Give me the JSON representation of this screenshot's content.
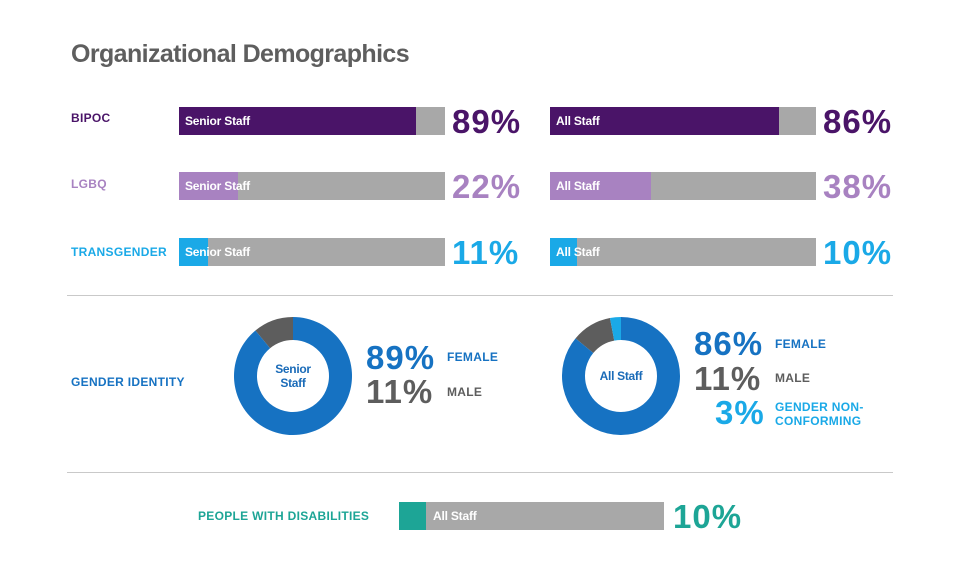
{
  "title": "Organizational Demographics",
  "colors": {
    "bipoc": "#4a1468",
    "lgbq": "#a882c1",
    "transgender": "#1aa9e7",
    "female": "#1672c2",
    "male": "#5d5d5d",
    "gnc": "#1aa9e7",
    "disabilities": "#1da596",
    "track": "#a8a8a8"
  },
  "rows": [
    {
      "label": "BIPOC",
      "senior_label": "Senior Staff",
      "senior_pct_text": "89%",
      "all_label": "All Staff",
      "all_pct_text": "86%"
    },
    {
      "label": "LGBQ",
      "senior_label": "Senior Staff",
      "senior_pct_text": "22%",
      "all_label": "All Staff",
      "all_pct_text": "38%"
    },
    {
      "label": "TRANSGENDER",
      "senior_label": "Senior Staff",
      "senior_pct_text": "11%",
      "all_label": "All Staff",
      "all_pct_text": "10%"
    }
  ],
  "gender": {
    "label": "GENDER IDENTITY",
    "senior": {
      "center": "Senior Staff",
      "items": [
        {
          "pct_text": "89%",
          "label": "FEMALE"
        },
        {
          "pct_text": "11%",
          "label": "MALE"
        }
      ]
    },
    "all": {
      "center": "All Staff",
      "items": [
        {
          "pct_text": "86%",
          "label": "FEMALE"
        },
        {
          "pct_text": "11%",
          "label": "MALE"
        },
        {
          "pct_text": "3%",
          "label": "GENDER NON-CONFORMING"
        }
      ]
    }
  },
  "disabilities": {
    "label": "PEOPLE WITH DISABILITIES",
    "bar_label": "All Staff",
    "pct_text": "10%"
  },
  "chart_data": [
    {
      "type": "bar",
      "title": "Organizational Demographics",
      "categories": [
        "BIPOC",
        "LGBQ",
        "TRANSGENDER"
      ],
      "series": [
        {
          "name": "Senior Staff",
          "values": [
            89,
            22,
            11
          ]
        },
        {
          "name": "All Staff",
          "values": [
            86,
            38,
            10
          ]
        }
      ],
      "ylim": [
        0,
        100
      ]
    },
    {
      "type": "pie",
      "title": "Senior Staff",
      "categories": [
        "FEMALE",
        "MALE"
      ],
      "values": [
        89,
        11
      ]
    },
    {
      "type": "pie",
      "title": "All Staff",
      "categories": [
        "FEMALE",
        "MALE",
        "GENDER NON-CONFORMING"
      ],
      "values": [
        86,
        11,
        3
      ]
    },
    {
      "type": "bar",
      "title": "PEOPLE WITH DISABILITIES",
      "categories": [
        "All Staff"
      ],
      "values": [
        10
      ],
      "ylim": [
        0,
        100
      ]
    }
  ]
}
